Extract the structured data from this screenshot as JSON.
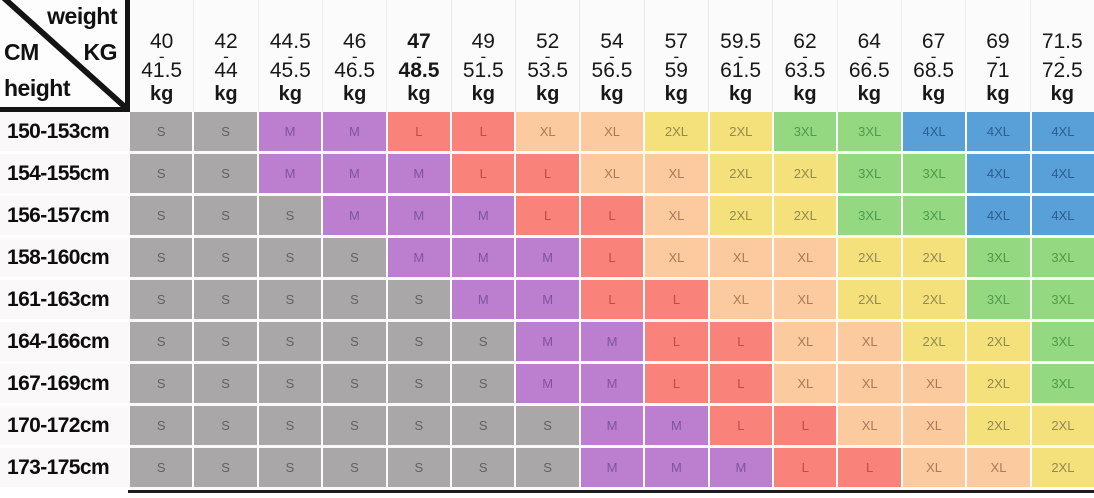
{
  "chart_data": {
    "type": "table",
    "title": "Height (cm) vs weight (kg) clothing size chart",
    "corner": {
      "top_right": "weight",
      "middle_left": "CM",
      "middle_right": "KG",
      "bottom_left": "height"
    },
    "range_separator": "-",
    "weight_columns": [
      {
        "from": "40",
        "to": "41.5",
        "unit": "kg",
        "bold": false
      },
      {
        "from": "42",
        "to": "44",
        "unit": "kg",
        "bold": false
      },
      {
        "from": "44.5",
        "to": "45.5",
        "unit": "kg",
        "bold": false
      },
      {
        "from": "46",
        "to": "46.5",
        "unit": "kg",
        "bold": false
      },
      {
        "from": "47",
        "to": "48.5",
        "unit": "kg",
        "bold": true
      },
      {
        "from": "49",
        "to": "51.5",
        "unit": "kg",
        "bold": false
      },
      {
        "from": "52",
        "to": "53.5",
        "unit": "kg",
        "bold": false
      },
      {
        "from": "54",
        "to": "56.5",
        "unit": "kg",
        "bold": false
      },
      {
        "from": "57",
        "to": "59",
        "unit": "kg",
        "bold": false
      },
      {
        "from": "59.5",
        "to": "61.5",
        "unit": "kg",
        "bold": false
      },
      {
        "from": "62",
        "to": "63.5",
        "unit": "kg",
        "bold": false
      },
      {
        "from": "64",
        "to": "66.5",
        "unit": "kg",
        "bold": false
      },
      {
        "from": "67",
        "to": "68.5",
        "unit": "kg",
        "bold": false
      },
      {
        "from": "69",
        "to": "71",
        "unit": "kg",
        "bold": false
      },
      {
        "from": "71.5",
        "to": "72.5",
        "unit": "kg",
        "bold": false
      }
    ],
    "height_rows": [
      {
        "height": "150-153cm",
        "sizes": [
          "S",
          "S",
          "M",
          "M",
          "L",
          "L",
          "XL",
          "XL",
          "2XL",
          "2XL",
          "3XL",
          "3XL",
          "4XL",
          "4XL",
          "4XL"
        ]
      },
      {
        "height": "154-155cm",
        "sizes": [
          "S",
          "S",
          "M",
          "M",
          "M",
          "L",
          "L",
          "XL",
          "XL",
          "2XL",
          "2XL",
          "3XL",
          "3XL",
          "4XL",
          "4XL"
        ]
      },
      {
        "height": "156-157cm",
        "sizes": [
          "S",
          "S",
          "S",
          "M",
          "M",
          "M",
          "L",
          "L",
          "XL",
          "2XL",
          "2XL",
          "3XL",
          "3XL",
          "4XL",
          "4XL"
        ]
      },
      {
        "height": "158-160cm",
        "sizes": [
          "S",
          "S",
          "S",
          "S",
          "M",
          "M",
          "M",
          "L",
          "XL",
          "XL",
          "XL",
          "2XL",
          "2XL",
          "3XL",
          "3XL"
        ]
      },
      {
        "height": "161-163cm",
        "sizes": [
          "S",
          "S",
          "S",
          "S",
          "S",
          "M",
          "M",
          "L",
          "L",
          "XL",
          "XL",
          "2XL",
          "2XL",
          "3XL",
          "3XL"
        ]
      },
      {
        "height": "164-166cm",
        "sizes": [
          "S",
          "S",
          "S",
          "S",
          "S",
          "S",
          "M",
          "M",
          "L",
          "L",
          "XL",
          "XL",
          "2XL",
          "2XL",
          "3XL"
        ]
      },
      {
        "height": "167-169cm",
        "sizes": [
          "S",
          "S",
          "S",
          "S",
          "S",
          "S",
          "M",
          "M",
          "L",
          "L",
          "XL",
          "XL",
          "XL",
          "2XL",
          "3XL"
        ]
      },
      {
        "height": "170-172cm",
        "sizes": [
          "S",
          "S",
          "S",
          "S",
          "S",
          "S",
          "S",
          "M",
          "M",
          "L",
          "L",
          "XL",
          "XL",
          "2XL",
          "2XL"
        ]
      },
      {
        "height": "173-175cm",
        "sizes": [
          "S",
          "S",
          "S",
          "S",
          "S",
          "S",
          "S",
          "M",
          "M",
          "M",
          "L",
          "L",
          "XL",
          "XL",
          "2XL"
        ]
      }
    ],
    "size_colors": {
      "S": {
        "bg": "#a9a7a7",
        "text": "#626262"
      },
      "M": {
        "bg": "#bc7ecf",
        "text": "#80549c"
      },
      "L": {
        "bg": "#f9827a",
        "text": "#c04b48"
      },
      "XL": {
        "bg": "#fbca9f",
        "text": "#a87a58"
      },
      "2XL": {
        "bg": "#f4e17b",
        "text": "#94894f"
      },
      "3XL": {
        "bg": "#94d982",
        "text": "#4e9a49"
      },
      "4XL": {
        "bg": "#58a0d7",
        "text": "#2b5f92"
      }
    }
  }
}
